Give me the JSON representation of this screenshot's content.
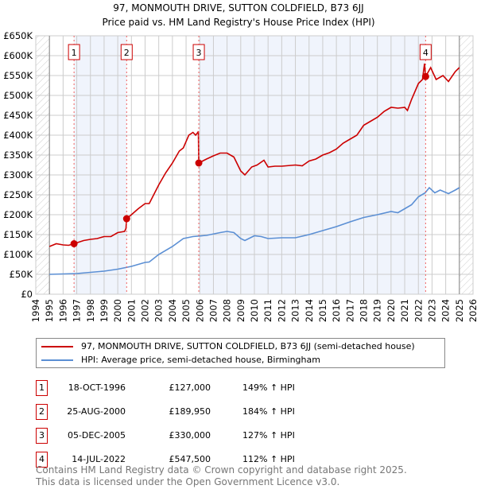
{
  "chart_data": {
    "type": "line",
    "title": "97, MONMOUTH DRIVE, SUTTON COLDFIELD, B73 6JJ",
    "subtitle": "Price paid vs. HM Land Registry's House Price Index (HPI)",
    "xlabel": "",
    "ylabel": "",
    "xlim": [
      1994,
      2026
    ],
    "ylim": [
      0,
      650000
    ],
    "x_ticks": [
      "1994",
      "1995",
      "1996",
      "1997",
      "1998",
      "1999",
      "2000",
      "2001",
      "2002",
      "2003",
      "2004",
      "2005",
      "2006",
      "2007",
      "2008",
      "2009",
      "2010",
      "2011",
      "2012",
      "2013",
      "2014",
      "2015",
      "2016",
      "2017",
      "2018",
      "2019",
      "2020",
      "2021",
      "2022",
      "2023",
      "2024",
      "2025",
      "2026"
    ],
    "y_ticks": [
      {
        "value": 0,
        "label": "£0"
      },
      {
        "value": 50000,
        "label": "£50K"
      },
      {
        "value": 100000,
        "label": "£100K"
      },
      {
        "value": 150000,
        "label": "£150K"
      },
      {
        "value": 200000,
        "label": "£200K"
      },
      {
        "value": 250000,
        "label": "£250K"
      },
      {
        "value": 300000,
        "label": "£300K"
      },
      {
        "value": 350000,
        "label": "£350K"
      },
      {
        "value": 400000,
        "label": "£400K"
      },
      {
        "value": 450000,
        "label": "£450K"
      },
      {
        "value": 500000,
        "label": "£500K"
      },
      {
        "value": 550000,
        "label": "£550K"
      },
      {
        "value": 600000,
        "label": "£600K"
      },
      {
        "value": 650000,
        "label": "£650K"
      }
    ],
    "grid": true,
    "data_range": [
      1995,
      2025
    ],
    "series": [
      {
        "name": "97, MONMOUTH DRIVE, SUTTON COLDFIELD, B73 6JJ (semi-detached house)",
        "color": "#cc0000",
        "x": [
          1995,
          1995.5,
          1996,
          1996.4,
          1996.8,
          1997.5,
          1998,
          1998.5,
          1999,
          1999.5,
          2000,
          2000.5,
          2000.6,
          2000.65,
          2001,
          2001.5,
          2002,
          2002.3,
          2003,
          2003.5,
          2004,
          2004.5,
          2004.8,
          2005.2,
          2005.5,
          2005.7,
          2005.88,
          2005.9,
          2005.93,
          2006.5,
          2007,
          2007.5,
          2008,
          2008.5,
          2009,
          2009.3,
          2009.8,
          2010.2,
          2010.7,
          2011,
          2011.5,
          2012,
          2013,
          2013.5,
          2014,
          2014.5,
          2015,
          2015.5,
          2016,
          2016.5,
          2017,
          2017.5,
          2018,
          2018.5,
          2019,
          2019.5,
          2020,
          2020.5,
          2021,
          2021.2,
          2021.5,
          2022,
          2022.3,
          2022.45,
          2022.53,
          2022.9,
          2023.3,
          2023.8,
          2024.2,
          2024.7,
          2025
        ],
        "y": [
          120000,
          127000,
          124000,
          123000,
          127000,
          135000,
          138000,
          140000,
          145000,
          145000,
          155000,
          158000,
          165000,
          189950,
          200000,
          215000,
          228000,
          228000,
          275000,
          305000,
          330000,
          360000,
          368000,
          400000,
          407000,
          400000,
          408000,
          410000,
          330000,
          340000,
          348000,
          355000,
          355000,
          345000,
          310000,
          300000,
          320000,
          325000,
          337000,
          320000,
          322000,
          322000,
          325000,
          323000,
          335000,
          340000,
          350000,
          356000,
          365000,
          380000,
          390000,
          400000,
          425000,
          435000,
          445000,
          460000,
          470000,
          468000,
          470000,
          462000,
          490000,
          530000,
          540000,
          580000,
          547500,
          570000,
          540000,
          550000,
          535000,
          560000,
          570000
        ]
      },
      {
        "name": "HPI: Average price, semi-detached house, Birmingham",
        "color": "#5b8fd4",
        "x": [
          1995,
          1997,
          1998,
          1999,
          2000,
          2001,
          2002,
          2002.3,
          2003,
          2004,
          2004.8,
          2005.5,
          2006.5,
          2007.5,
          2008,
          2008.5,
          2009,
          2009.3,
          2010,
          2010.5,
          2011,
          2012,
          2013,
          2014,
          2015,
          2016,
          2017,
          2018,
          2019,
          2020,
          2020.5,
          2021,
          2021.5,
          2022,
          2022.5,
          2022.8,
          2023.2,
          2023.6,
          2024.2,
          2024.7,
          2025
        ],
        "y": [
          50000,
          52000,
          55000,
          58000,
          63000,
          70000,
          80000,
          81000,
          100000,
          120000,
          140000,
          145000,
          148000,
          155000,
          158000,
          155000,
          140000,
          135000,
          147000,
          145000,
          140000,
          142000,
          142000,
          150000,
          160000,
          170000,
          182000,
          193000,
          200000,
          208000,
          205000,
          215000,
          225000,
          245000,
          255000,
          268000,
          255000,
          262000,
          253000,
          262000,
          268000
        ]
      }
    ],
    "sales": [
      {
        "label": "1",
        "x": 1996.8,
        "y": 127000
      },
      {
        "label": "2",
        "x": 2000.65,
        "y": 189950
      },
      {
        "label": "3",
        "x": 2005.93,
        "y": 330000
      },
      {
        "label": "4",
        "x": 2022.53,
        "y": 547500
      }
    ]
  },
  "legend": [
    {
      "label": "97, MONMOUTH DRIVE, SUTTON COLDFIELD, B73 6JJ (semi-detached house)",
      "color": "#cc0000"
    },
    {
      "label": "HPI: Average price, semi-detached house, Birmingham",
      "color": "#5b8fd4"
    }
  ],
  "transactions": [
    {
      "num": "1",
      "date": "18-OCT-1996",
      "price": "£127,000",
      "hpi": "149% ↑ HPI"
    },
    {
      "num": "2",
      "date": "25-AUG-2000",
      "price": "£189,950",
      "hpi": "184% ↑ HPI"
    },
    {
      "num": "3",
      "date": "05-DEC-2005",
      "price": "£330,000",
      "hpi": "127% ↑ HPI"
    },
    {
      "num": "4",
      "date": "14-JUL-2022",
      "price": "£547,500",
      "hpi": "112% ↑ HPI"
    }
  ],
  "footer": {
    "line1": "Contains HM Land Registry data © Crown copyright and database right 2025.",
    "line2": "This data is licensed under the Open Government Licence v3.0."
  }
}
